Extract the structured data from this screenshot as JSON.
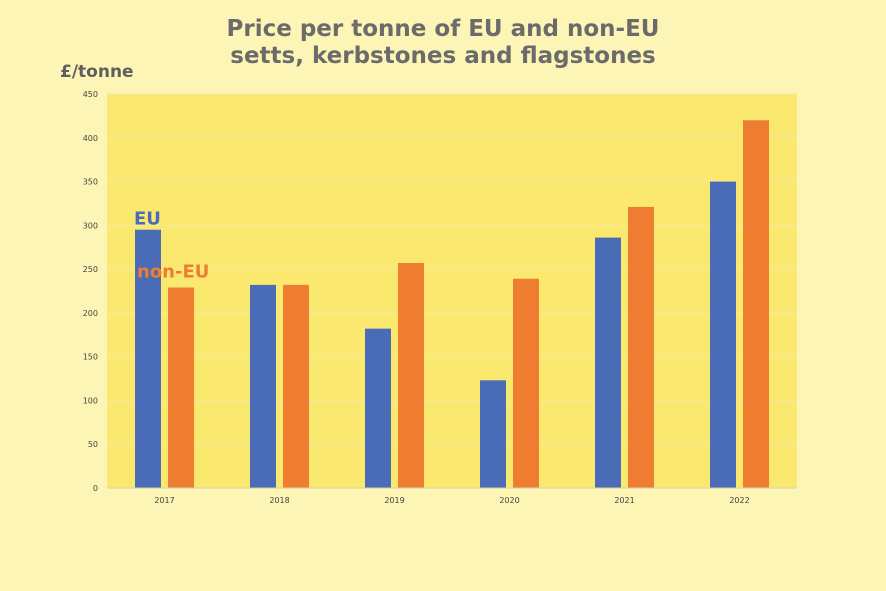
{
  "colors": {
    "page_background": "#fdf5b5",
    "plot_background": "#fbe96f",
    "gridline": "#f2e9a8",
    "title": "#6b6b6b",
    "ylabel": "#5f5f5f"
  },
  "chart_data": {
    "type": "bar",
    "title_lines": [
      "Price per tonne of EU and non-EU",
      "setts, kerbstones and flagstones"
    ],
    "xlabel": "",
    "ylabel": "£/tonne",
    "categories": [
      "2017",
      "2018",
      "2019",
      "2020",
      "2021",
      "2022"
    ],
    "ylim": [
      0,
      450
    ],
    "yticks": [
      "0",
      "50",
      "100",
      "150",
      "200",
      "250",
      "300",
      "350",
      "400",
      "450"
    ],
    "grid": true,
    "legend_placement": "inline labels over the 2017 bars",
    "series": [
      {
        "name": "EU",
        "color": "#4a6bb5",
        "values": [
          295,
          232,
          182,
          123,
          286,
          350
        ]
      },
      {
        "name": "non-EU",
        "color": "#ee7d31",
        "values": [
          229,
          232,
          257,
          239,
          321,
          420
        ]
      }
    ]
  }
}
